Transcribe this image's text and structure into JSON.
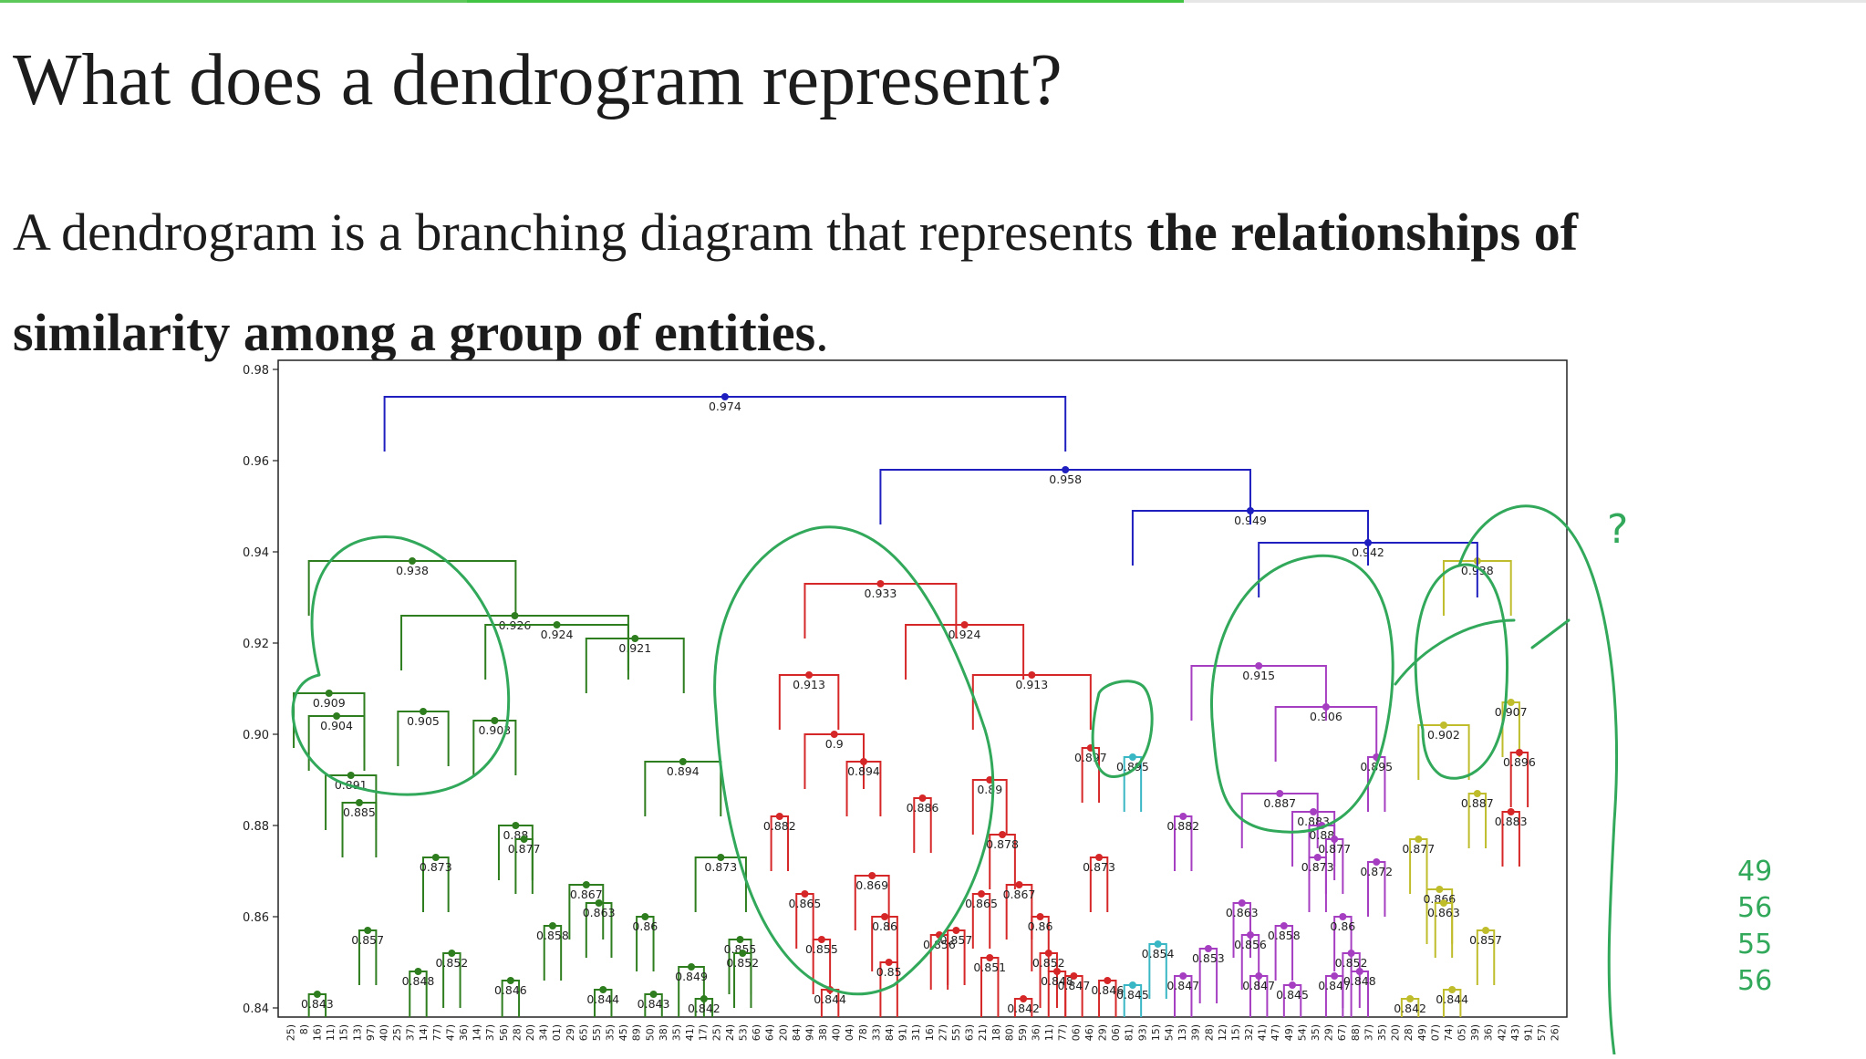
{
  "slide": {
    "title": "What does a dendrogram represent?",
    "text_before": "A dendrogram is a branching diagram that represents ",
    "text_bold": "the relationships of similarity among a group of entities",
    "text_after": "."
  },
  "progress": {
    "fraction": 0.634,
    "colors": {
      "done": "#5cc85a",
      "highlight": "#41c441",
      "rest": "#e6e6e6"
    }
  },
  "annotation": {
    "color": "#31a85a",
    "side_notes": [
      "49",
      "56",
      "55",
      "56"
    ],
    "question_mark": "?"
  },
  "chart_data": {
    "type": "dendrogram",
    "title": "",
    "xlabel": "",
    "ylabel": "",
    "ylim": [
      0.838,
      0.982
    ],
    "yticks": [
      0.84,
      0.86,
      0.88,
      0.9,
      0.92,
      0.94,
      0.96,
      0.98
    ],
    "ytick_labels": [
      "0.84",
      "0.86",
      "0.88",
      "0.90",
      "0.92",
      "0.94",
      "0.96",
      "0.98"
    ],
    "leaf_count": 120,
    "x_tick_labels": [
      "25)",
      "8)",
      "16)",
      "11)",
      "15)",
      "13)",
      "97)",
      "40)",
      "25)",
      "37)",
      "14)",
      "77)",
      "47)",
      "36)",
      "14)",
      "37)",
      "56)",
      "28)",
      "20)",
      "34)",
      "01)",
      "29)",
      "65)",
      "55)",
      "35)",
      "45)",
      "89)",
      "50)",
      "38)",
      "35)",
      "41)",
      "17)",
      "25)",
      "24)",
      "53)",
      "66)",
      "64)",
      "20)",
      "84)",
      "94)",
      "38)",
      "40)",
      "04)",
      "78)",
      "33)",
      "84)",
      "91)",
      "31)",
      "16)",
      "27)",
      "55)",
      "63)",
      "21)",
      "18)",
      "80)",
      "59)",
      "36)",
      "11)",
      "77)",
      "06)",
      "46)",
      "29)",
      "06)",
      "81)",
      "93)",
      "15)",
      "54)",
      "13)",
      "39)",
      "28)",
      "12)",
      "15)",
      "32)",
      "41)",
      "47)",
      "49)",
      "54)",
      "35)",
      "29)",
      "67)",
      "88)",
      "37)",
      "35)",
      "20)",
      "28)",
      "49)",
      "07)",
      "74)",
      "05)",
      "39)",
      "36)",
      "42)",
      "43)",
      "91)",
      "57)",
      "26)"
    ],
    "colors": {
      "green": "#2e7d1e",
      "red": "#d62728",
      "blue": "#1f1fbf",
      "cyan": "#3ab7c4",
      "purple": "#a63ec1",
      "olive": "#c0bd2c"
    },
    "merges": [
      {
        "x1": 0.6,
        "x2": 4.8,
        "height": 0.909,
        "label": "0.909",
        "color": "green"
      },
      {
        "x1": 1.5,
        "x2": 4.8,
        "height": 0.904,
        "label": "0.904",
        "color": "green"
      },
      {
        "x1": 2.5,
        "x2": 5.5,
        "height": 0.891,
        "label": "0.891",
        "color": "green"
      },
      {
        "x1": 3.5,
        "x2": 5.5,
        "height": 0.885,
        "label": "0.885",
        "color": "green"
      },
      {
        "x1": 1.5,
        "x2": 2.5,
        "height": 0.843,
        "label": "0.843",
        "color": "green"
      },
      {
        "x1": 4.5,
        "x2": 5.5,
        "height": 0.857,
        "label": "0.857",
        "color": "green"
      },
      {
        "x1": 6.8,
        "x2": 9.8,
        "height": 0.905,
        "label": "0.905",
        "color": "green"
      },
      {
        "x1": 8.3,
        "x2": 9.8,
        "height": 0.873,
        "label": "0.873",
        "color": "green"
      },
      {
        "x1": 7.5,
        "x2": 8.5,
        "height": 0.848,
        "label": "0.848",
        "color": "green"
      },
      {
        "x1": 9.5,
        "x2": 10.5,
        "height": 0.852,
        "label": "0.852",
        "color": "green"
      },
      {
        "x1": 11.3,
        "x2": 13.8,
        "height": 0.903,
        "label": "0.903",
        "color": "green"
      },
      {
        "x1": 12.8,
        "x2": 14.8,
        "height": 0.88,
        "label": "0.88",
        "color": "green"
      },
      {
        "x1": 13.8,
        "x2": 14.8,
        "height": 0.877,
        "label": "0.877",
        "color": "green"
      },
      {
        "x1": 13.0,
        "x2": 14.0,
        "height": 0.846,
        "label": "0.846",
        "color": "green"
      },
      {
        "x1": 15.5,
        "x2": 16.5,
        "height": 0.858,
        "label": "0.858",
        "color": "green"
      },
      {
        "x1": 17.0,
        "x2": 19.0,
        "height": 0.867,
        "label": "0.867",
        "color": "green"
      },
      {
        "x1": 18.0,
        "x2": 19.5,
        "height": 0.863,
        "label": "0.863",
        "color": "green"
      },
      {
        "x1": 18.5,
        "x2": 19.5,
        "height": 0.844,
        "label": "0.844",
        "color": "green"
      },
      {
        "x1": 21.0,
        "x2": 22.0,
        "height": 0.86,
        "label": "0.86",
        "color": "green"
      },
      {
        "x1": 21.5,
        "x2": 22.5,
        "height": 0.843,
        "label": "0.843",
        "color": "green"
      },
      {
        "x1": 23.5,
        "x2": 25.0,
        "height": 0.849,
        "label": "0.849",
        "color": "green"
      },
      {
        "x1": 24.5,
        "x2": 25.5,
        "height": 0.842,
        "label": "0.842",
        "color": "green"
      },
      {
        "x1": 24.5,
        "x2": 27.5,
        "height": 0.873,
        "label": "0.873",
        "color": "green"
      },
      {
        "x1": 26.5,
        "x2": 27.8,
        "height": 0.855,
        "label": "0.855",
        "color": "green"
      },
      {
        "x1": 26.8,
        "x2": 27.8,
        "height": 0.852,
        "label": "0.852",
        "color": "green"
      },
      {
        "x1": 21.5,
        "x2": 26.0,
        "height": 0.894,
        "label": "0.894",
        "color": "green"
      },
      {
        "x1": 18.0,
        "x2": 23.8,
        "height": 0.921,
        "label": "0.921",
        "color": "green"
      },
      {
        "x1": 7.0,
        "x2": 20.5,
        "height": 0.926,
        "label": "0.926",
        "color": "green"
      },
      {
        "x1": 12.0,
        "x2": 20.5,
        "height": 0.924,
        "label": "0.924",
        "color": "green"
      },
      {
        "x1": 1.5,
        "x2": 13.8,
        "height": 0.938,
        "label": "0.938",
        "color": "green"
      },
      {
        "x1": 29.0,
        "x2": 30.0,
        "height": 0.882,
        "label": "0.882",
        "color": "red"
      },
      {
        "x1": 30.5,
        "x2": 31.5,
        "height": 0.865,
        "label": "0.865",
        "color": "red"
      },
      {
        "x1": 31.5,
        "x2": 32.5,
        "height": 0.855,
        "label": "0.855",
        "color": "red"
      },
      {
        "x1": 32.0,
        "x2": 33.0,
        "height": 0.844,
        "label": "0.844",
        "color": "red"
      },
      {
        "x1": 31.0,
        "x2": 34.5,
        "height": 0.9,
        "label": "0.9",
        "color": "red"
      },
      {
        "x1": 33.5,
        "x2": 35.5,
        "height": 0.894,
        "label": "0.894",
        "color": "red"
      },
      {
        "x1": 34.0,
        "x2": 36.0,
        "height": 0.869,
        "label": "0.869",
        "color": "red"
      },
      {
        "x1": 35.0,
        "x2": 36.5,
        "height": 0.86,
        "label": "0.86",
        "color": "red"
      },
      {
        "x1": 35.5,
        "x2": 36.5,
        "height": 0.85,
        "label": "0.85",
        "color": "red"
      },
      {
        "x1": 29.5,
        "x2": 33.0,
        "height": 0.913,
        "label": "0.913",
        "color": "red"
      },
      {
        "x1": 37.5,
        "x2": 38.5,
        "height": 0.886,
        "label": "0.886",
        "color": "red"
      },
      {
        "x1": 38.5,
        "x2": 39.5,
        "height": 0.856,
        "label": "0.856",
        "color": "red"
      },
      {
        "x1": 39.5,
        "x2": 40.5,
        "height": 0.857,
        "label": "0.857",
        "color": "red"
      },
      {
        "x1": 41.0,
        "x2": 43.0,
        "height": 0.89,
        "label": "0.89",
        "color": "red"
      },
      {
        "x1": 42.0,
        "x2": 43.5,
        "height": 0.878,
        "label": "0.878",
        "color": "red"
      },
      {
        "x1": 41.0,
        "x2": 42.0,
        "height": 0.865,
        "label": "0.865",
        "color": "red"
      },
      {
        "x1": 41.5,
        "x2": 42.5,
        "height": 0.851,
        "label": "0.851",
        "color": "red"
      },
      {
        "x1": 43.0,
        "x2": 44.5,
        "height": 0.867,
        "label": "0.867",
        "color": "red"
      },
      {
        "x1": 43.5,
        "x2": 44.5,
        "height": 0.842,
        "label": "0.842",
        "color": "red"
      },
      {
        "x1": 44.5,
        "x2": 45.5,
        "height": 0.86,
        "label": "0.86",
        "color": "red"
      },
      {
        "x1": 45.0,
        "x2": 46.0,
        "height": 0.852,
        "label": "0.852",
        "color": "red"
      },
      {
        "x1": 45.5,
        "x2": 46.5,
        "height": 0.848,
        "label": "0.848",
        "color": "red"
      },
      {
        "x1": 46.5,
        "x2": 47.5,
        "height": 0.847,
        "label": "0.847",
        "color": "red"
      },
      {
        "x1": 47.5,
        "x2": 48.5,
        "height": 0.897,
        "label": "0.897",
        "color": "red"
      },
      {
        "x1": 48.0,
        "x2": 49.0,
        "height": 0.873,
        "label": "0.873",
        "color": "red"
      },
      {
        "x1": 48.5,
        "x2": 49.5,
        "height": 0.846,
        "label": "0.846",
        "color": "red"
      },
      {
        "x1": 41.0,
        "x2": 48.0,
        "height": 0.913,
        "label": "0.913",
        "color": "red"
      },
      {
        "x1": 37.0,
        "x2": 44.0,
        "height": 0.924,
        "label": "0.924",
        "color": "red"
      },
      {
        "x1": 31.0,
        "x2": 40.0,
        "height": 0.933,
        "label": "0.933",
        "color": "red"
      },
      {
        "x1": 50.0,
        "x2": 51.0,
        "height": 0.895,
        "label": "0.895",
        "color": "cyan"
      },
      {
        "x1": 50.0,
        "x2": 51.0,
        "height": 0.845,
        "label": "0.845",
        "color": "cyan"
      },
      {
        "x1": 51.5,
        "x2": 52.5,
        "height": 0.854,
        "label": "0.854",
        "color": "cyan"
      },
      {
        "x1": 53.0,
        "x2": 54.0,
        "height": 0.882,
        "label": "0.882",
        "color": "purple"
      },
      {
        "x1": 53.0,
        "x2": 54.0,
        "height": 0.847,
        "label": "0.847",
        "color": "purple"
      },
      {
        "x1": 54.5,
        "x2": 55.5,
        "height": 0.853,
        "label": "0.853",
        "color": "purple"
      },
      {
        "x1": 56.5,
        "x2": 57.5,
        "height": 0.863,
        "label": "0.863",
        "color": "purple"
      },
      {
        "x1": 57.0,
        "x2": 58.0,
        "height": 0.856,
        "label": "0.856",
        "color": "purple"
      },
      {
        "x1": 57.5,
        "x2": 58.5,
        "height": 0.847,
        "label": "0.847",
        "color": "purple"
      },
      {
        "x1": 57.0,
        "x2": 61.5,
        "height": 0.887,
        "label": "0.887",
        "color": "purple"
      },
      {
        "x1": 59.0,
        "x2": 60.0,
        "height": 0.858,
        "label": "0.858",
        "color": "purple"
      },
      {
        "x1": 59.5,
        "x2": 60.5,
        "height": 0.845,
        "label": "0.845",
        "color": "purple"
      },
      {
        "x1": 60.0,
        "x2": 62.5,
        "height": 0.883,
        "label": "0.883",
        "color": "purple"
      },
      {
        "x1": 61.0,
        "x2": 62.5,
        "height": 0.88,
        "label": "0.88",
        "color": "purple"
      },
      {
        "x1": 62.0,
        "x2": 63.0,
        "height": 0.877,
        "label": "0.877",
        "color": "purple"
      },
      {
        "x1": 61.0,
        "x2": 62.0,
        "height": 0.873,
        "label": "0.873",
        "color": "purple"
      },
      {
        "x1": 62.5,
        "x2": 63.5,
        "height": 0.86,
        "label": "0.86",
        "color": "purple"
      },
      {
        "x1": 62.0,
        "x2": 63.0,
        "height": 0.847,
        "label": "0.847",
        "color": "purple"
      },
      {
        "x1": 63.0,
        "x2": 64.0,
        "height": 0.852,
        "label": "0.852",
        "color": "purple"
      },
      {
        "x1": 63.5,
        "x2": 64.5,
        "height": 0.848,
        "label": "0.848",
        "color": "purple"
      },
      {
        "x1": 64.5,
        "x2": 65.5,
        "height": 0.895,
        "label": "0.895",
        "color": "purple"
      },
      {
        "x1": 64.5,
        "x2": 65.5,
        "height": 0.872,
        "label": "0.872",
        "color": "purple"
      },
      {
        "x1": 59.0,
        "x2": 65.0,
        "height": 0.906,
        "label": "0.906",
        "color": "purple"
      },
      {
        "x1": 54.0,
        "x2": 62.0,
        "height": 0.915,
        "label": "0.915",
        "color": "purple"
      },
      {
        "x1": 66.5,
        "x2": 67.5,
        "height": 0.842,
        "label": "0.842",
        "color": "olive"
      },
      {
        "x1": 67.0,
        "x2": 68.0,
        "height": 0.877,
        "label": "0.877",
        "color": "olive"
      },
      {
        "x1": 68.0,
        "x2": 69.5,
        "height": 0.866,
        "label": "0.866",
        "color": "olive"
      },
      {
        "x1": 68.5,
        "x2": 69.5,
        "height": 0.863,
        "label": "0.863",
        "color": "olive"
      },
      {
        "x1": 69.0,
        "x2": 70.0,
        "height": 0.844,
        "label": "0.844",
        "color": "olive"
      },
      {
        "x1": 67.5,
        "x2": 70.5,
        "height": 0.902,
        "label": "0.902",
        "color": "olive"
      },
      {
        "x1": 70.5,
        "x2": 71.5,
        "height": 0.887,
        "label": "0.887",
        "color": "olive"
      },
      {
        "x1": 71.0,
        "x2": 72.0,
        "height": 0.857,
        "label": "0.857",
        "color": "olive"
      },
      {
        "x1": 72.5,
        "x2": 73.5,
        "height": 0.907,
        "label": "0.907",
        "color": "olive"
      },
      {
        "x1": 72.5,
        "x2": 73.5,
        "height": 0.883,
        "label": "0.883",
        "color": "red"
      },
      {
        "x1": 73.0,
        "x2": 74.0,
        "height": 0.896,
        "label": "0.896",
        "color": "red"
      },
      {
        "x1": 69.0,
        "x2": 73.0,
        "height": 0.938,
        "label": "0.938",
        "color": "olive"
      },
      {
        "x1": 58.0,
        "x2": 71.0,
        "height": 0.942,
        "label": "0.942",
        "color": "blue"
      },
      {
        "x1": 50.5,
        "x2": 64.5,
        "height": 0.949,
        "label": "0.949",
        "color": "blue"
      },
      {
        "x1": 35.5,
        "x2": 57.5,
        "height": 0.958,
        "label": "0.958",
        "color": "blue"
      },
      {
        "x1": 6.0,
        "x2": 46.5,
        "height": 0.974,
        "label": "0.974",
        "color": "blue"
      }
    ]
  }
}
